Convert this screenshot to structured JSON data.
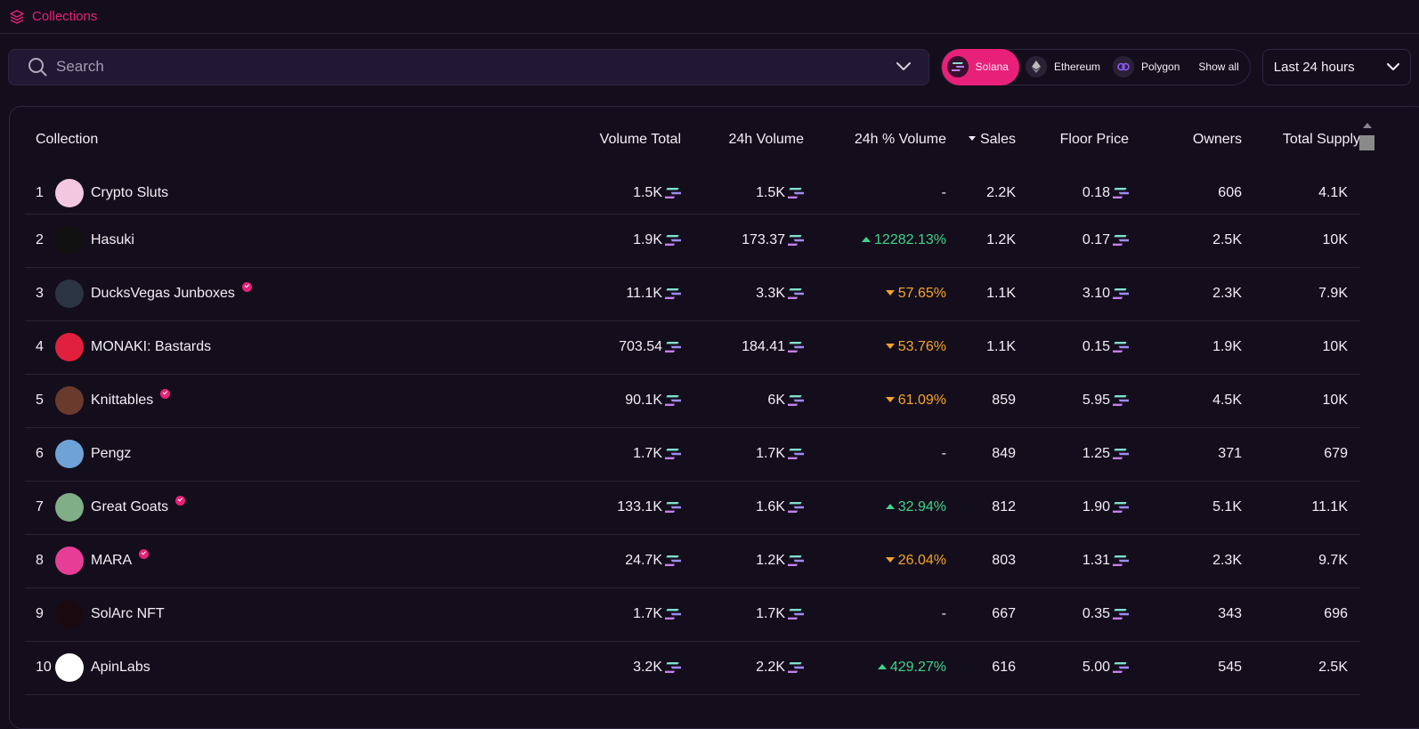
{
  "header": {
    "title": "Collections"
  },
  "search": {
    "placeholder": "Search"
  },
  "chains": [
    {
      "label": "Solana"
    },
    {
      "label": "Ethereum"
    },
    {
      "label": "Polygon"
    }
  ],
  "chains_show_all": "Show all",
  "time_range": "Last 24 hours",
  "colors": {
    "accent": "#e8207a",
    "up": "#3fd48a",
    "down": "#f5a42a"
  },
  "table": {
    "headers": {
      "collection": "Collection",
      "volume_total": "Volume Total",
      "volume_24h": "24h Volume",
      "volume_pct": "24h % Volume",
      "sales": "Sales",
      "floor": "Floor Price",
      "owners": "Owners",
      "supply": "Total Supply"
    },
    "rows": [
      {
        "rank": "1",
        "name": "Crypto Sluts",
        "verified": false,
        "volume_total": "1.5K",
        "volume_24h": "1.5K",
        "pct": "-",
        "trend": "none",
        "sales": "2.2K",
        "floor": "0.18",
        "owners": "606",
        "supply": "4.1K",
        "avatar_color": "#f3c7e0"
      },
      {
        "rank": "2",
        "name": "Hasuki",
        "verified": false,
        "volume_total": "1.9K",
        "volume_24h": "173.37",
        "pct": "12282.13%",
        "trend": "up",
        "sales": "1.2K",
        "floor": "0.17",
        "owners": "2.5K",
        "supply": "10K",
        "avatar_color": "#111111"
      },
      {
        "rank": "3",
        "name": "DucksVegas Junboxes",
        "verified": true,
        "volume_total": "11.1K",
        "volume_24h": "3.3K",
        "pct": "57.65%",
        "trend": "down",
        "sales": "1.1K",
        "floor": "3.10",
        "owners": "2.3K",
        "supply": "7.9K",
        "avatar_color": "#2a3442"
      },
      {
        "rank": "4",
        "name": "MONAKI: Bastards",
        "verified": false,
        "volume_total": "703.54",
        "volume_24h": "184.41",
        "pct": "53.76%",
        "trend": "down",
        "sales": "1.1K",
        "floor": "0.15",
        "owners": "1.9K",
        "supply": "10K",
        "avatar_color": "#e0203c"
      },
      {
        "rank": "5",
        "name": "Knittables",
        "verified": true,
        "volume_total": "90.1K",
        "volume_24h": "6K",
        "pct": "61.09%",
        "trend": "down",
        "sales": "859",
        "floor": "5.95",
        "owners": "4.5K",
        "supply": "10K",
        "avatar_color": "#6a3b2c"
      },
      {
        "rank": "6",
        "name": "Pengz",
        "verified": false,
        "volume_total": "1.7K",
        "volume_24h": "1.7K",
        "pct": "-",
        "trend": "none",
        "sales": "849",
        "floor": "1.25",
        "owners": "371",
        "supply": "679",
        "avatar_color": "#6fa3d8"
      },
      {
        "rank": "7",
        "name": "Great Goats",
        "verified": true,
        "volume_total": "133.1K",
        "volume_24h": "1.6K",
        "pct": "32.94%",
        "trend": "up",
        "sales": "812",
        "floor": "1.90",
        "owners": "5.1K",
        "supply": "11.1K",
        "avatar_color": "#7fae87"
      },
      {
        "rank": "8",
        "name": "MARA",
        "verified": true,
        "volume_total": "24.7K",
        "volume_24h": "1.2K",
        "pct": "26.04%",
        "trend": "down",
        "sales": "803",
        "floor": "1.31",
        "owners": "2.3K",
        "supply": "9.7K",
        "avatar_color": "#e83d96"
      },
      {
        "rank": "9",
        "name": "SolArc NFT",
        "verified": false,
        "volume_total": "1.7K",
        "volume_24h": "1.7K",
        "pct": "-",
        "trend": "none",
        "sales": "667",
        "floor": "0.35",
        "owners": "343",
        "supply": "696",
        "avatar_color": "#1a0a10"
      },
      {
        "rank": "10",
        "name": "ApinLabs",
        "verified": false,
        "volume_total": "3.2K",
        "volume_24h": "2.2K",
        "pct": "429.27%",
        "trend": "up",
        "sales": "616",
        "floor": "5.00",
        "owners": "545",
        "supply": "2.5K",
        "avatar_color": "#ffffff"
      }
    ]
  }
}
